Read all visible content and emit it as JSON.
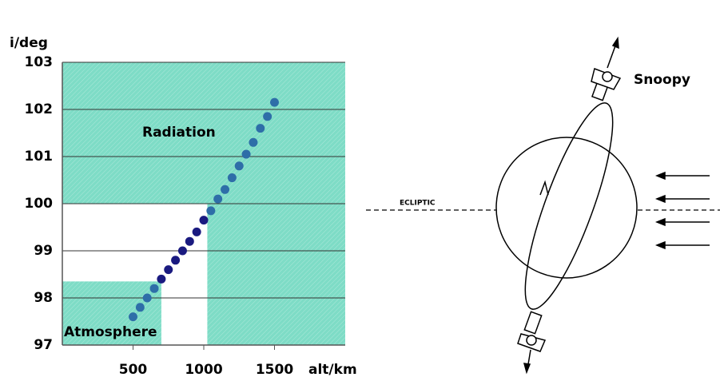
{
  "chart_data": {
    "type": "scatter",
    "ylabel": "i/deg",
    "xlabel": "alt/km",
    "x": [
      500,
      550,
      600,
      650,
      700,
      750,
      800,
      850,
      900,
      950,
      1000,
      1050,
      1100,
      1150,
      1200,
      1250,
      1300,
      1350,
      1400,
      1450,
      1500
    ],
    "values": [
      97.6,
      97.8,
      98.0,
      98.2,
      98.4,
      98.6,
      98.8,
      99.0,
      99.2,
      99.4,
      99.65,
      99.85,
      100.1,
      100.3,
      100.55,
      100.8,
      101.05,
      101.3,
      101.6,
      101.85,
      102.15
    ],
    "color": "#1a1a80",
    "region_point_color": "#2e6ea8",
    "xlim": [
      0,
      2000
    ],
    "xticks": [
      500,
      1000,
      1500
    ],
    "ylim": [
      97,
      103
    ],
    "yticks": [
      97,
      98,
      99,
      100,
      101,
      102,
      103
    ],
    "grid": true,
    "region_color": "#7edcc6",
    "regions": [
      {
        "label": "Radiation",
        "rects": [
          [
            0,
            2000,
            100,
            103
          ],
          [
            1025,
            2000,
            97,
            100
          ]
        ]
      },
      {
        "label": "Atmosphere",
        "rects": [
          [
            0,
            700,
            97,
            98.35
          ]
        ]
      }
    ]
  },
  "diagram": {
    "satellite_label": "Snoopy",
    "ecliptic_label": "ECLIPTIC"
  }
}
